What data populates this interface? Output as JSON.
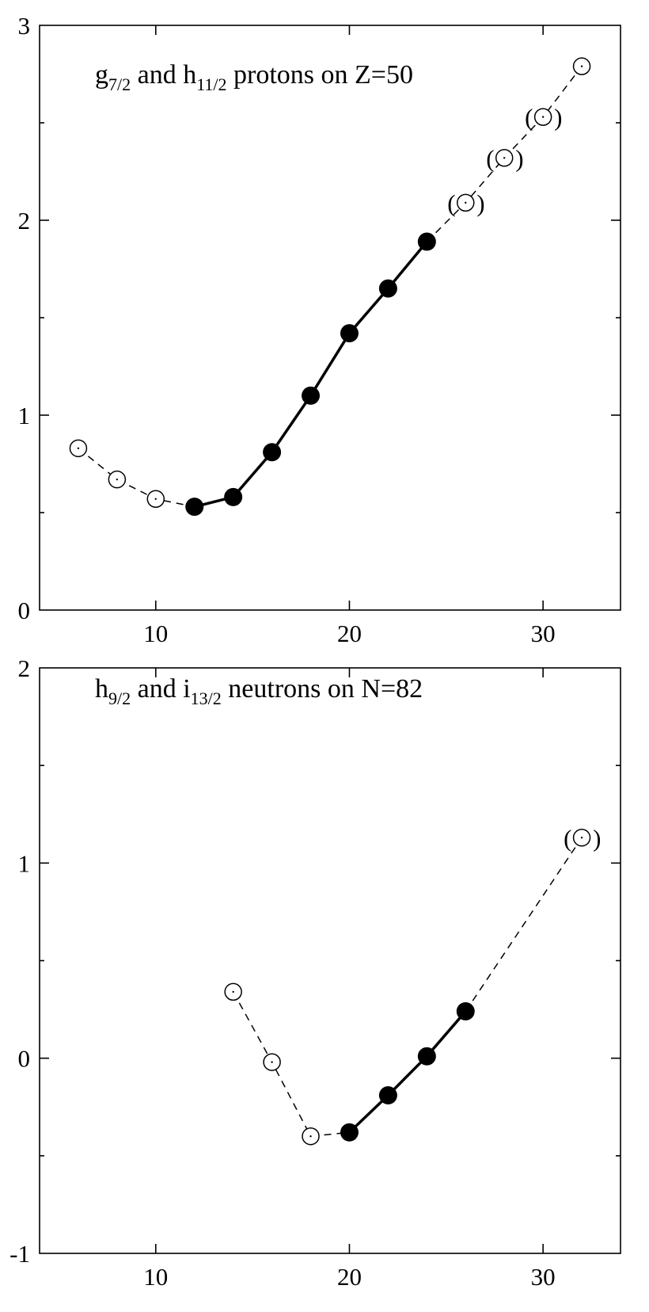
{
  "chart_data": [
    {
      "type": "line",
      "title_parts": {
        "a": "g",
        "a_sub": "7/2",
        "mid": " and h",
        "b_sub": "11/2",
        "tail": " protons on Z=50"
      },
      "xlim": [
        4,
        34
      ],
      "ylim": [
        0,
        3
      ],
      "xticks": [
        10,
        20,
        30
      ],
      "yticks": [
        0,
        1,
        2,
        3
      ],
      "grid": false,
      "series": [
        {
          "style": "open-dashed",
          "x": [
            6,
            8,
            10,
            12
          ],
          "y": [
            0.83,
            0.67,
            0.57,
            0.53
          ],
          "open_points": [
            0,
            1,
            2
          ]
        },
        {
          "style": "filled-solid",
          "x": [
            12,
            14,
            16,
            18,
            20,
            22,
            24
          ],
          "y": [
            0.53,
            0.58,
            0.81,
            1.1,
            1.42,
            1.65,
            1.89
          ]
        },
        {
          "style": "open-dashed-parenthesized",
          "x": [
            24,
            26,
            28,
            30,
            32
          ],
          "y": [
            1.89,
            2.09,
            2.32,
            2.53,
            2.79
          ],
          "open_points": [
            1,
            2,
            3,
            4
          ],
          "paren_points": [
            1,
            2,
            3
          ]
        }
      ]
    },
    {
      "type": "line",
      "title_parts": {
        "a": "h",
        "a_sub": "9/2",
        "mid": " and i",
        "b_sub": "13/2",
        "tail": " neutrons on N=82"
      },
      "xlim": [
        4,
        34
      ],
      "ylim": [
        -1,
        2
      ],
      "xticks": [
        10,
        20,
        30
      ],
      "yticks": [
        -1,
        0,
        1,
        2
      ],
      "grid": false,
      "series": [
        {
          "style": "open-dashed",
          "x": [
            14,
            16,
            18,
            20
          ],
          "y": [
            0.34,
            -0.02,
            -0.4,
            -0.38
          ],
          "open_points": [
            0,
            1,
            2
          ]
        },
        {
          "style": "filled-solid",
          "x": [
            20,
            22,
            24,
            26
          ],
          "y": [
            -0.38,
            -0.19,
            0.01,
            0.24
          ]
        },
        {
          "style": "open-dashed-parenthesized",
          "x": [
            26,
            32
          ],
          "y": [
            0.24,
            1.13
          ],
          "open_points": [
            1
          ],
          "paren_points": [
            1
          ]
        }
      ]
    }
  ]
}
